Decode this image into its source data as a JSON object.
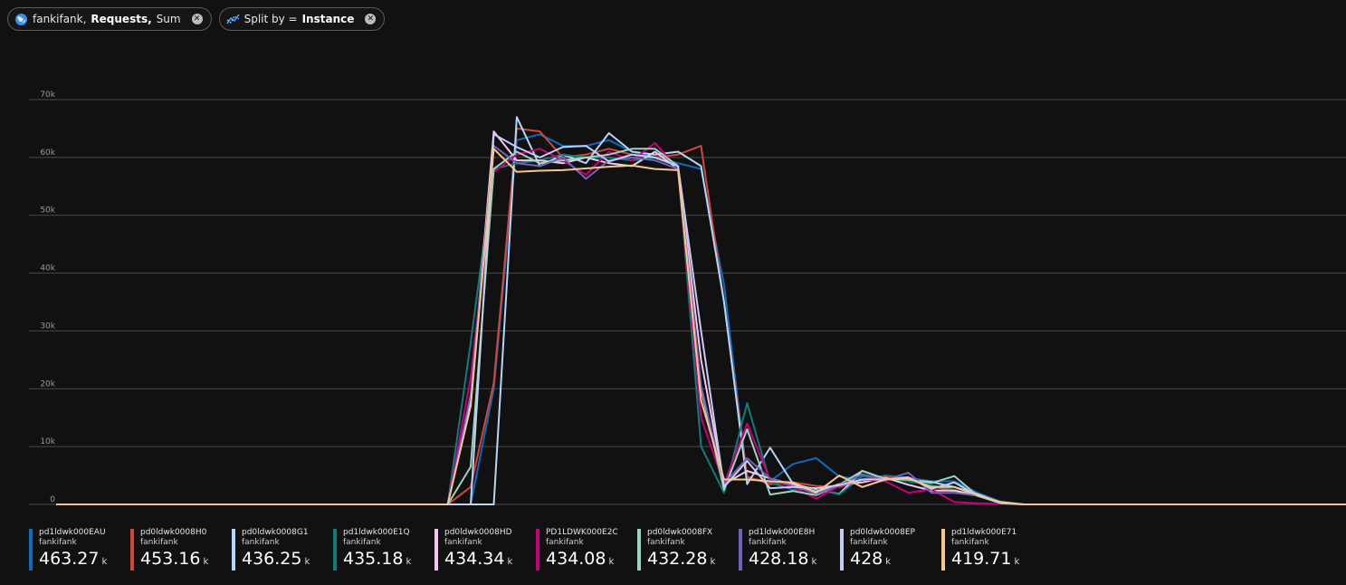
{
  "pills": [
    {
      "resource": "fankifank,",
      "metric": "Requests,",
      "agg": "Sum",
      "icon": "resource-globe-icon"
    },
    {
      "prefix": "Split by =",
      "value": "Instance",
      "icon": "split-chart-icon"
    }
  ],
  "chart_data": {
    "type": "line",
    "title": "",
    "xlabel": "",
    "ylabel": "",
    "ylim": [
      0,
      70000
    ],
    "yticks": [
      0,
      10000,
      20000,
      30000,
      40000,
      50000,
      60000,
      70000
    ],
    "ytick_labels": [
      "0",
      "10k",
      "20k",
      "30k",
      "40k",
      "50k",
      "60k",
      "70k"
    ],
    "grid": true,
    "legend": "bottom",
    "x_count": 57,
    "series": [
      {
        "name": "pd1ldwk000EAU",
        "sub": "fankifank",
        "total": "463.27",
        "unit": "k",
        "color": "#0f6cbd",
        "values": [
          0,
          0,
          0,
          0,
          0,
          0,
          0,
          0,
          0,
          0,
          0,
          0,
          0,
          0,
          0,
          0,
          0,
          0,
          0,
          20000,
          63000,
          64000,
          62000,
          62000,
          63000,
          61000,
          60000,
          59000,
          58000,
          38000,
          4500,
          4000,
          7000,
          8000,
          4800,
          4300,
          5000,
          4600,
          4000,
          4000,
          2000,
          500,
          0,
          0,
          0,
          0,
          0,
          0,
          0,
          0,
          0,
          0,
          0,
          0,
          0,
          0,
          0
        ]
      },
      {
        "name": "pd0ldwk0008H0",
        "sub": "fankifank",
        "total": "453.16",
        "unit": "k",
        "color": "#d1483a",
        "values": [
          0,
          0,
          0,
          0,
          0,
          0,
          0,
          0,
          0,
          0,
          0,
          0,
          0,
          0,
          0,
          0,
          0,
          0,
          3000,
          21000,
          65000,
          64500,
          60000,
          60500,
          61500,
          60500,
          60000,
          60500,
          62000,
          35000,
          4800,
          3500,
          3800,
          3200,
          3000,
          4200,
          4800,
          4200,
          3200,
          2200,
          1500,
          400,
          0,
          0,
          0,
          0,
          0,
          0,
          0,
          0,
          0,
          0,
          0,
          0,
          0,
          0,
          0
        ]
      },
      {
        "name": "pd0ldwk0008G1",
        "sub": "fankifank",
        "total": "436.25",
        "unit": "k",
        "color": "#b4d6fa",
        "values": [
          0,
          0,
          0,
          0,
          0,
          0,
          0,
          0,
          0,
          0,
          0,
          0,
          0,
          0,
          0,
          0,
          0,
          0,
          0,
          0,
          67000,
          58500,
          60500,
          59000,
          64200,
          61000,
          60500,
          61000,
          58500,
          35000,
          3500,
          9800,
          3500,
          2600,
          1800,
          5800,
          4400,
          4200,
          3900,
          3000,
          1800,
          300,
          0,
          0,
          0,
          0,
          0,
          0,
          0,
          0,
          0,
          0,
          0,
          0,
          0,
          0,
          0
        ]
      },
      {
        "name": "pd1ldwk000E1Q",
        "sub": "fankifank",
        "total": "435.18",
        "unit": "k",
        "color": "#0e7c7b",
        "values": [
          0,
          0,
          0,
          0,
          0,
          0,
          0,
          0,
          0,
          0,
          0,
          0,
          0,
          0,
          0,
          0,
          0,
          0,
          28000,
          58000,
          59000,
          59500,
          60500,
          60000,
          60000,
          59500,
          60000,
          58500,
          10000,
          2000,
          17500,
          3800,
          2500,
          2800,
          1700,
          4900,
          4500,
          4000,
          3300,
          2500,
          1500,
          200,
          0,
          0,
          0,
          0,
          0,
          0,
          0,
          0,
          0,
          0,
          0,
          0,
          0,
          0,
          0
        ]
      },
      {
        "name": "pd0ldwk0008HD",
        "sub": "fankifank",
        "total": "434.34",
        "unit": "k",
        "color": "#f3c6ee",
        "values": [
          0,
          0,
          0,
          0,
          0,
          0,
          0,
          0,
          0,
          0,
          0,
          0,
          0,
          0,
          0,
          0,
          0,
          0,
          18000,
          64500,
          59500,
          59500,
          59000,
          60000,
          59000,
          58500,
          61000,
          58000,
          25000,
          3500,
          5800,
          4500,
          3400,
          2200,
          3500,
          3800,
          4600,
          3400,
          2400,
          2400,
          1500,
          300,
          0,
          0,
          0,
          0,
          0,
          0,
          0,
          0,
          0,
          0,
          0,
          0,
          0,
          0,
          0
        ]
      },
      {
        "name": "PD1LDWK000E2C",
        "sub": "fankifank",
        "total": "434.08",
        "unit": "k",
        "color": "#c4007a",
        "values": [
          0,
          0,
          0,
          0,
          0,
          0,
          0,
          0,
          0,
          0,
          0,
          0,
          0,
          0,
          0,
          0,
          0,
          0,
          22000,
          57500,
          60500,
          61500,
          59500,
          57000,
          61000,
          59500,
          62500,
          58000,
          15000,
          3500,
          14000,
          4200,
          3000,
          1000,
          3200,
          4300,
          4000,
          2000,
          2600,
          400,
          200,
          100,
          0,
          0,
          0,
          0,
          0,
          0,
          0,
          0,
          0,
          0,
          0,
          0,
          0,
          0,
          0
        ]
      },
      {
        "name": "pd0ldwk0008FX",
        "sub": "fankifank",
        "total": "432.28",
        "unit": "k",
        "color": "#9ad4bf",
        "values": [
          0,
          0,
          0,
          0,
          0,
          0,
          0,
          0,
          0,
          0,
          0,
          0,
          0,
          0,
          0,
          0,
          0,
          0,
          6500,
          58000,
          61000,
          59000,
          59500,
          60000,
          60500,
          61500,
          61500,
          58500,
          20000,
          2500,
          13000,
          1700,
          2300,
          1600,
          3400,
          5800,
          4400,
          4300,
          3700,
          4900,
          1500,
          200,
          0,
          0,
          0,
          0,
          0,
          0,
          0,
          0,
          0,
          0,
          0,
          0,
          0,
          0,
          0
        ]
      },
      {
        "name": "pd1ldwk000E8H",
        "sub": "fankifank",
        "total": "428.18",
        "unit": "k",
        "color": "#7161ba",
        "values": [
          0,
          0,
          0,
          0,
          0,
          0,
          0,
          0,
          0,
          0,
          0,
          0,
          0,
          0,
          0,
          0,
          0,
          0,
          19000,
          62000,
          59000,
          58500,
          60000,
          56300,
          59500,
          60000,
          59500,
          58000,
          20500,
          3500,
          8000,
          4500,
          3200,
          1800,
          3300,
          5200,
          4200,
          5500,
          2000,
          2000,
          1500,
          300,
          0,
          0,
          0,
          0,
          0,
          0,
          0,
          0,
          0,
          0,
          0,
          0,
          0,
          0,
          0
        ]
      },
      {
        "name": "pd0ldwk0008EP",
        "sub": "fankifank",
        "total": "428",
        "unit": "k",
        "color": "#c5cdf5",
        "values": [
          0,
          0,
          0,
          0,
          0,
          0,
          0,
          0,
          0,
          0,
          0,
          0,
          0,
          0,
          0,
          0,
          0,
          0,
          0,
          64000,
          61800,
          60000,
          61800,
          62000,
          59300,
          60500,
          60000,
          58500,
          30000,
          3000,
          7500,
          2800,
          3000,
          2800,
          3300,
          4300,
          4300,
          4700,
          2700,
          3800,
          1500,
          300,
          0,
          0,
          0,
          0,
          0,
          0,
          0,
          0,
          0,
          0,
          0,
          0,
          0,
          0,
          0
        ]
      },
      {
        "name": "pd1ldwk000E71",
        "sub": "fankifank",
        "total": "419.71",
        "unit": "k",
        "color": "#f4c88a",
        "values": [
          0,
          0,
          0,
          0,
          0,
          0,
          0,
          0,
          0,
          0,
          0,
          0,
          0,
          0,
          0,
          0,
          0,
          0,
          17000,
          61500,
          57500,
          57700,
          57800,
          58100,
          58400,
          58600,
          58000,
          57800,
          18000,
          4300,
          4300,
          4000,
          3800,
          2000,
          5000,
          3000,
          4300,
          4500,
          3000,
          3000,
          1600,
          400,
          0,
          0,
          0,
          0,
          0,
          0,
          0,
          0,
          0,
          0,
          0,
          0,
          0,
          0,
          0
        ]
      }
    ]
  }
}
